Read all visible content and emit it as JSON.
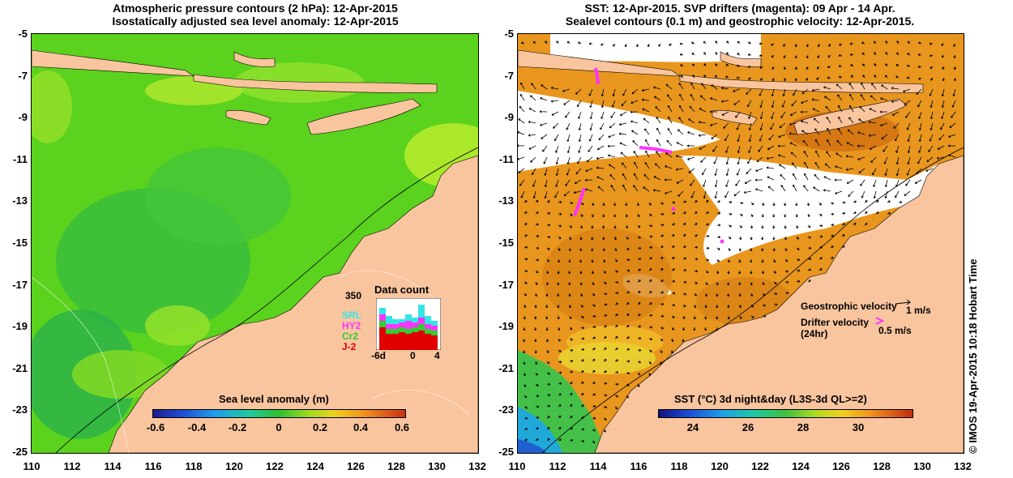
{
  "left_panel": {
    "title_line1": "Atmospheric pressure contours (2 hPa): 12-Apr-2015",
    "title_line2": "Isostatically adjusted sea level anomaly: 12-Apr-2015",
    "colorbar": {
      "title": "Sea level anomaly (m)",
      "ticks": [
        "-0.6",
        "-0.4",
        "-0.2",
        "0",
        "0.2",
        "0.4",
        "0.6"
      ]
    },
    "data_count": {
      "title": "Data count",
      "max_label": "350",
      "series": [
        {
          "name": "SRL",
          "color": "#33e6e6"
        },
        {
          "name": "HY2",
          "color": "#ff33ff"
        },
        {
          "name": "Cr2",
          "color": "#33cc33"
        },
        {
          "name": "J-2",
          "color": "#e00000"
        }
      ],
      "x_labels": [
        "-6d",
        "0",
        "4"
      ]
    }
  },
  "right_panel": {
    "title_line1": "SST: 12-Apr-2015. SVP drifters (magenta): 09 Apr - 14 Apr.",
    "title_line2": "Sealevel contours (0.1 m) and geostrophic velocity: 12-Apr-2015.",
    "colorbar": {
      "title": "SST (°C) 3d night&day (L3S-3d QL>=2)",
      "ticks": [
        "24",
        "26",
        "28",
        "30"
      ]
    },
    "legend": {
      "geostrophic_label": "Geostrophic velocity",
      "geostrophic_scale": "1 m/s",
      "drifter_label": "Drifter velocity",
      "drifter_sub": "(24hr)",
      "drifter_scale": "0.5 m/s"
    }
  },
  "axes": {
    "y_labels": [
      "-5",
      "-7",
      "-9",
      "-11",
      "-13",
      "-15",
      "-17",
      "-19",
      "-21",
      "-23",
      "-25"
    ],
    "x_labels": [
      "110",
      "112",
      "114",
      "116",
      "118",
      "120",
      "122",
      "124",
      "126",
      "128",
      "130",
      "132"
    ]
  },
  "credit": "© IMOS 19-Apr-2015 10:18 Hobart Time",
  "colors": {
    "land": "#f9c59e",
    "sla_ocean": "#55d020",
    "sst_ocean": "#e8961e",
    "drifter": "#ff33ff"
  }
}
